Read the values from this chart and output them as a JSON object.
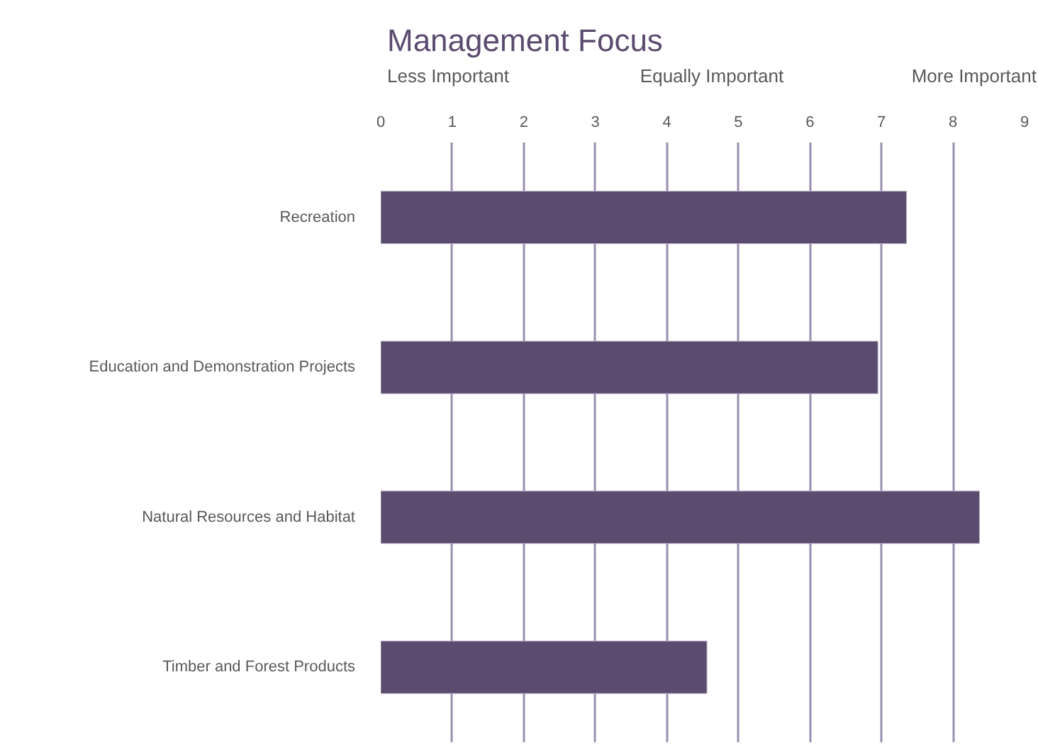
{
  "chart_data": {
    "type": "bar",
    "orientation": "horizontal",
    "title": "Management Focus",
    "annotations": [
      "Less Important",
      "Equally Important",
      "More Important"
    ],
    "categories": [
      "Recreation",
      "Education and Demonstration Projects",
      "Natural Resources and Habitat",
      "Timber and Forest Products"
    ],
    "values": [
      7.35,
      6.95,
      8.37,
      4.56
    ],
    "color": "#5b4b6f",
    "xlim": [
      0,
      9
    ],
    "xticks": [
      0,
      1,
      2,
      3,
      4,
      5,
      6,
      7,
      8,
      9
    ],
    "grid": "x"
  }
}
